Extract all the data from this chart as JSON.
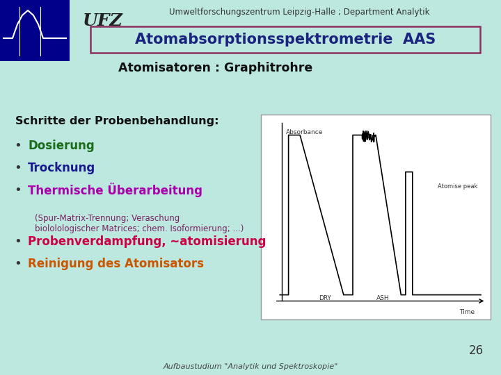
{
  "bg_color": "#bce8e0",
  "header_text": "Umweltforschungszentrum Leipzig-Halle ; Department Analytik",
  "title_box_text": "Atomabsorptionsspektrometrie  AAS",
  "title_box_border": "#8b3060",
  "title_text_color": "#1a237e",
  "subtitle_text": "Atomisatoren : Graphitrohre",
  "subtitle_color": "#111111",
  "section_title": "Schritte der Probenbehandlung:",
  "section_title_color": "#111111",
  "bullets": [
    {
      "text": "Dosierung",
      "color": "#1a6b1a"
    },
    {
      "text": "Trocknung",
      "color": "#1a1a8e"
    },
    {
      "text": "Thermische Überarbeitung",
      "color": "#aa00aa"
    }
  ],
  "sub_note": "(Spur-Matrix-Trennung; Veraschung\nbiololologischer Matrices; chem. Isoformierung; ...)",
  "sub_note_color": "#7b2060",
  "bullets2": [
    {
      "text": "Probenverdampfung, ~atomisierung",
      "color": "#cc0044"
    },
    {
      "text": "Reinigung des Atomisators",
      "color": "#cc5500"
    }
  ],
  "page_number": "26",
  "footer_text": "Aufbaustudium \"Analytik und Spektroskopie\"",
  "footer_color": "#444444",
  "logo_bg": "#00008b"
}
